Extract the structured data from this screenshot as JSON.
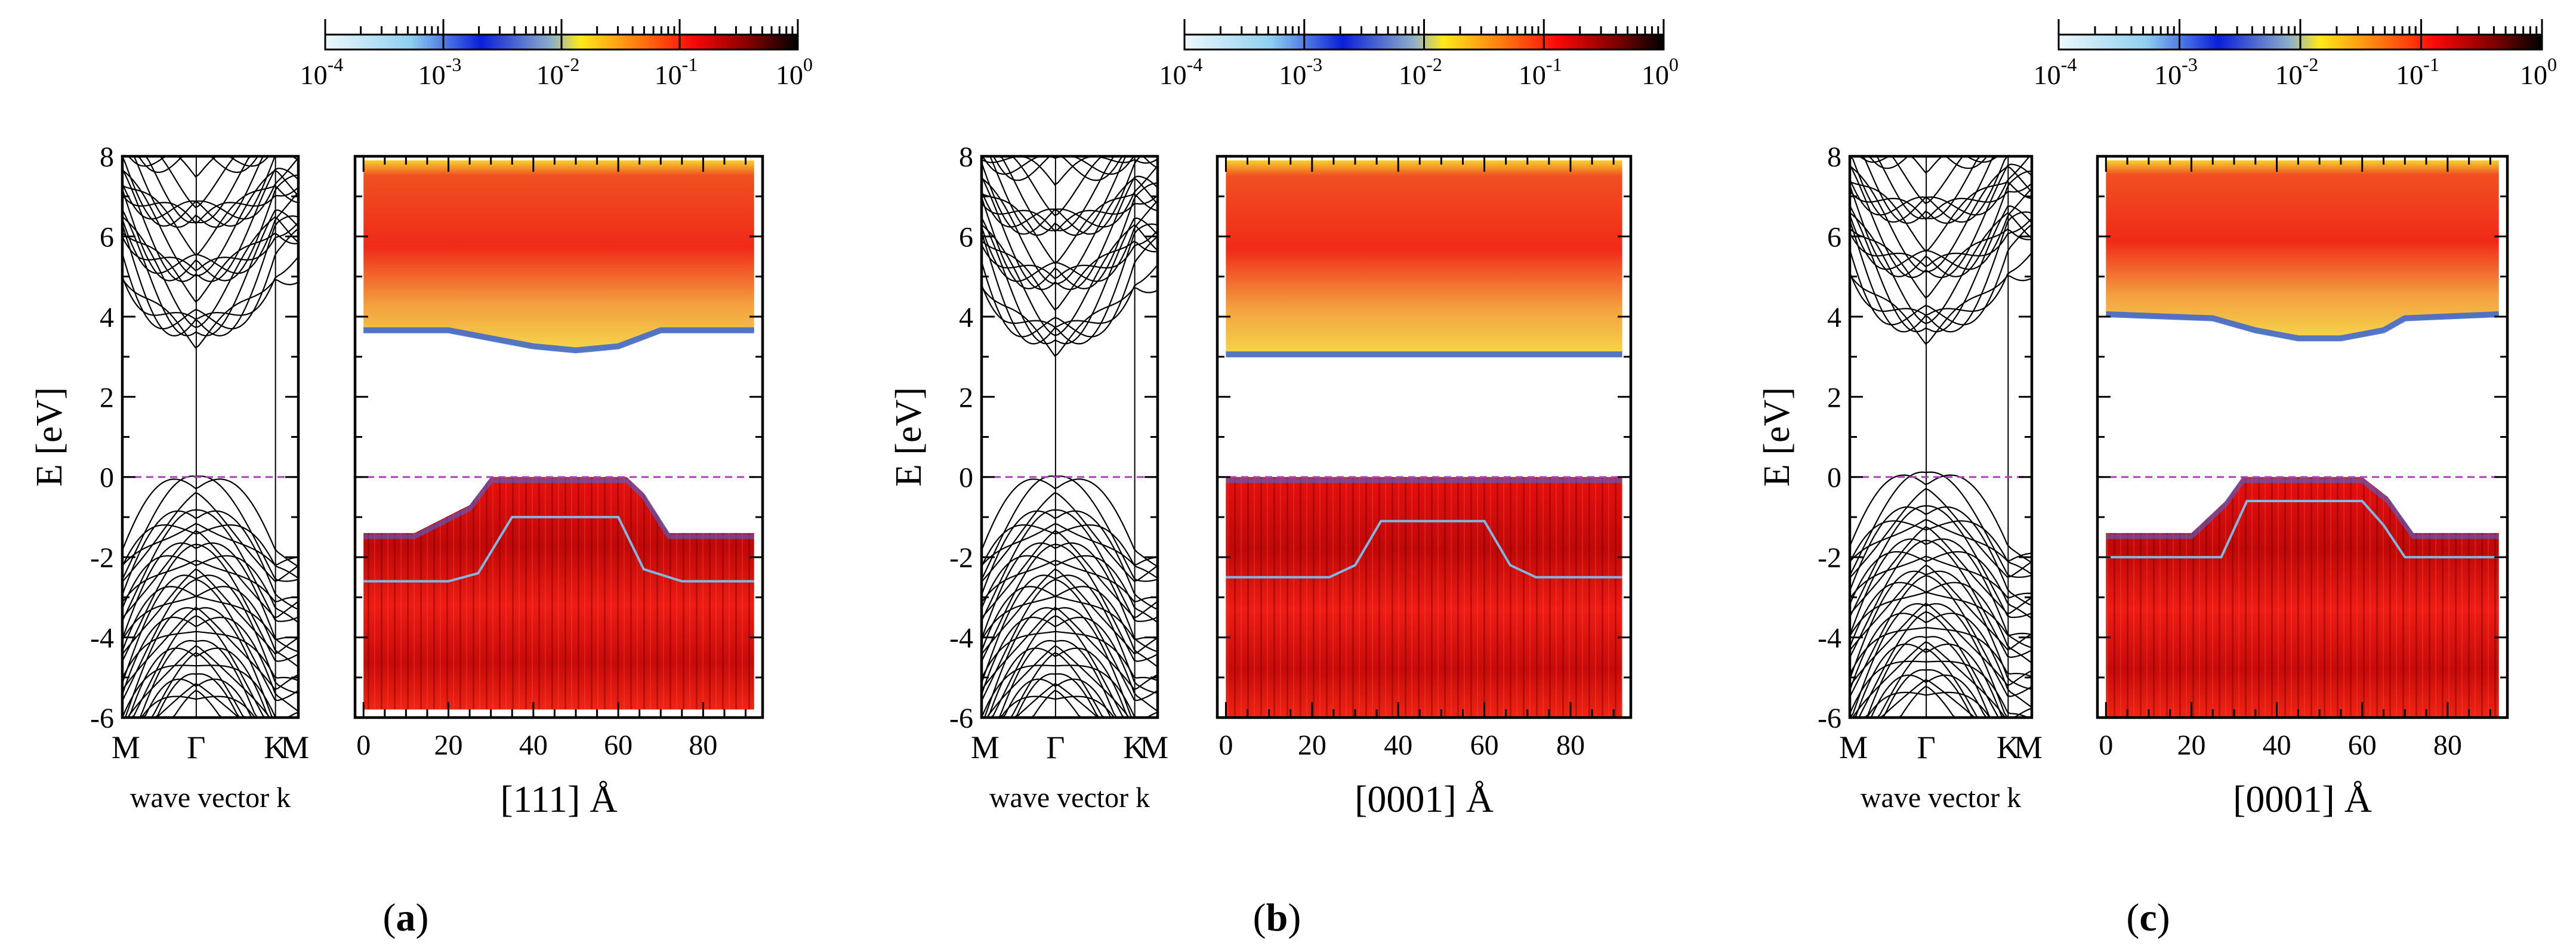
{
  "figure": {
    "panels": [
      {
        "label_open": "(",
        "label_letter": "a",
        "label_close": ")",
        "band_ylabel": "E [eV]",
        "band_yticks": [
          "8",
          "6",
          "4",
          "2",
          "0",
          "-2",
          "-4",
          "-6"
        ],
        "band_kpoints": [
          "M",
          "Γ",
          "K",
          "M"
        ],
        "band_xlabel": "wave vector k",
        "map_xlabel": "[111] Å",
        "map_xticks": [
          "0",
          "20",
          "40",
          "60",
          "80"
        ],
        "colorbar_ticks": [
          {
            "base": "10",
            "exp": "-4"
          },
          {
            "base": "10",
            "exp": "-3"
          },
          {
            "base": "10",
            "exp": "-2"
          },
          {
            "base": "10",
            "exp": "-1"
          },
          {
            "base": "10",
            "exp": "0"
          }
        ]
      },
      {
        "label_open": "(",
        "label_letter": "b",
        "label_close": ")",
        "band_ylabel": "E [eV]",
        "band_yticks": [
          "8",
          "6",
          "4",
          "2",
          "0",
          "-2",
          "-4",
          "-6"
        ],
        "band_kpoints": [
          "M",
          "Γ",
          "K",
          "M"
        ],
        "band_xlabel": "wave vector k",
        "map_xlabel": "[0001] Å",
        "map_xticks": [
          "0",
          "20",
          "40",
          "60",
          "80"
        ],
        "colorbar_ticks": [
          {
            "base": "10",
            "exp": "-4"
          },
          {
            "base": "10",
            "exp": "-3"
          },
          {
            "base": "10",
            "exp": "-2"
          },
          {
            "base": "10",
            "exp": "-1"
          },
          {
            "base": "10",
            "exp": "0"
          }
        ]
      },
      {
        "label_open": "(",
        "label_letter": "c",
        "label_close": ")",
        "band_ylabel": "E [eV]",
        "band_yticks": [
          "8",
          "6",
          "4",
          "2",
          "0",
          "-2",
          "-4",
          "-6"
        ],
        "band_kpoints": [
          "M",
          "Γ",
          "K",
          "M"
        ],
        "band_xlabel": "wave vector k",
        "map_xlabel": "[0001] Å",
        "map_xticks": [
          "0",
          "20",
          "40",
          "60",
          "80"
        ],
        "colorbar_ticks": [
          {
            "base": "10",
            "exp": "-4"
          },
          {
            "base": "10",
            "exp": "-3"
          },
          {
            "base": "10",
            "exp": "-2"
          },
          {
            "base": "10",
            "exp": "-1"
          },
          {
            "base": "10",
            "exp": "0"
          }
        ]
      }
    ]
  },
  "chart_data": [
    {
      "type": "heatmap",
      "panel": "a",
      "xlabel": "[111] Å",
      "ylabel": "E [eV]",
      "xlim": [
        -2,
        94
      ],
      "ylim": [
        -6,
        8
      ],
      "colorbar_range": [
        0.0001,
        1
      ],
      "colorbar_scale": "log",
      "fermi_level_eV": 0,
      "conduction_band_edge_eV": {
        "x": [
          0,
          20,
          30,
          40,
          50,
          60,
          65,
          70,
          92
        ],
        "e": [
          3.6,
          3.6,
          3.4,
          3.2,
          3.1,
          3.2,
          3.4,
          3.6,
          3.6
        ]
      },
      "valence_band_top_eV": {
        "x": [
          0,
          12,
          25,
          30,
          62,
          66,
          72,
          92
        ],
        "e": [
          -1.4,
          -1.4,
          -0.7,
          0.0,
          0.0,
          -0.4,
          -1.4,
          -1.4
        ]
      },
      "band_edge_profile_eV": {
        "x": [
          0,
          20,
          27,
          35,
          60,
          66,
          75,
          92
        ],
        "e": [
          -2.6,
          -2.6,
          -2.4,
          -1.0,
          -1.0,
          -2.3,
          -2.6,
          -2.6
        ]
      },
      "map_lower_limit_eV": -5.8,
      "band_structure": {
        "kpoints": [
          "M",
          "Γ",
          "K",
          "M"
        ],
        "min_conduction_eV": 3.2,
        "max_valence_eV": -0.3
      }
    },
    {
      "type": "heatmap",
      "panel": "b",
      "xlabel": "[0001] Å",
      "ylabel": "E [eV]",
      "xlim": [
        -2,
        94
      ],
      "ylim": [
        -6,
        8
      ],
      "colorbar_range": [
        0.0001,
        1
      ],
      "colorbar_scale": "log",
      "fermi_level_eV": 0,
      "conduction_band_edge_eV": {
        "x": [
          0,
          92
        ],
        "e": [
          3.0,
          3.0
        ]
      },
      "valence_band_top_eV": {
        "x": [
          0,
          92
        ],
        "e": [
          0.0,
          0.0
        ]
      },
      "band_edge_profile_eV": {
        "x": [
          0,
          24,
          30,
          36,
          60,
          66,
          72,
          92
        ],
        "e": [
          -2.5,
          -2.5,
          -2.2,
          -1.1,
          -1.1,
          -2.2,
          -2.5,
          -2.5
        ]
      },
      "map_lower_limit_eV": -6.0,
      "band_structure": {
        "kpoints": [
          "M",
          "Γ",
          "K",
          "M"
        ],
        "min_conduction_eV": 3.0,
        "max_valence_eV": -0.3
      }
    },
    {
      "type": "heatmap",
      "panel": "c",
      "xlabel": "[0001] Å",
      "ylabel": "E [eV]",
      "xlim": [
        -2,
        94
      ],
      "ylim": [
        -6,
        8
      ],
      "colorbar_range": [
        0.0001,
        1
      ],
      "colorbar_scale": "log",
      "fermi_level_eV": 0,
      "conduction_band_edge_eV": {
        "x": [
          0,
          25,
          35,
          45,
          55,
          65,
          70,
          92
        ],
        "e": [
          4.0,
          3.9,
          3.6,
          3.4,
          3.4,
          3.6,
          3.9,
          4.0
        ]
      },
      "valence_band_top_eV": {
        "x": [
          0,
          20,
          28,
          32,
          60,
          66,
          72,
          92
        ],
        "e": [
          -1.4,
          -1.4,
          -0.6,
          0.0,
          0.0,
          -0.5,
          -1.4,
          -1.4
        ]
      },
      "band_edge_profile_eV": {
        "x": [
          0,
          27,
          33,
          60,
          65,
          70,
          92
        ],
        "e": [
          -2.0,
          -2.0,
          -0.6,
          -0.6,
          -1.2,
          -2.0,
          -2.0
        ]
      },
      "map_lower_limit_eV": -6.0,
      "band_structure": {
        "kpoints": [
          "M",
          "Γ",
          "K",
          "M"
        ],
        "min_conduction_eV": 3.3,
        "max_valence_eV": -0.2
      }
    }
  ]
}
